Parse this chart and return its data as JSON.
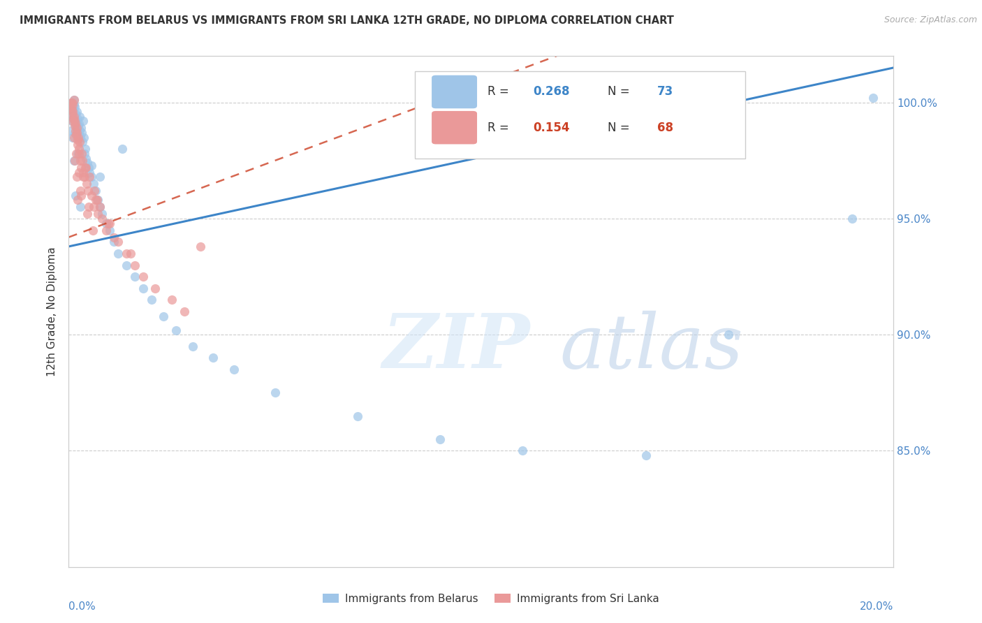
{
  "title": "IMMIGRANTS FROM BELARUS VS IMMIGRANTS FROM SRI LANKA 12TH GRADE, NO DIPLOMA CORRELATION CHART",
  "source": "Source: ZipAtlas.com",
  "ylabel": "12th Grade, No Diploma",
  "x_min": 0.0,
  "x_max": 20.0,
  "y_min": 80.0,
  "y_max": 102.0,
  "y_ticks": [
    85.0,
    90.0,
    95.0,
    100.0
  ],
  "y_tick_labels": [
    "85.0%",
    "90.0%",
    "95.0%",
    "100.0%"
  ],
  "color_belarus": "#9fc5e8",
  "color_srilanka": "#ea9999",
  "color_axis_labels": "#4a86c8",
  "color_regression_belarus": "#3d85c8",
  "color_regression_srilanka": "#cc4125",
  "watermark_zip": "ZIP",
  "watermark_atlas": "atlas",
  "belarus_reg_x0": 0.0,
  "belarus_reg_y0": 93.8,
  "belarus_reg_x1": 20.0,
  "belarus_reg_y1": 101.5,
  "srilanka_reg_x0": 0.0,
  "srilanka_reg_y0": 94.2,
  "srilanka_reg_x1": 5.0,
  "srilanka_reg_y1": 97.5,
  "belarus_x": [
    0.05,
    0.05,
    0.06,
    0.07,
    0.08,
    0.09,
    0.1,
    0.1,
    0.11,
    0.12,
    0.13,
    0.14,
    0.15,
    0.15,
    0.16,
    0.17,
    0.18,
    0.19,
    0.2,
    0.2,
    0.21,
    0.22,
    0.23,
    0.24,
    0.25,
    0.26,
    0.27,
    0.28,
    0.3,
    0.32,
    0.34,
    0.36,
    0.38,
    0.4,
    0.42,
    0.45,
    0.48,
    0.5,
    0.55,
    0.6,
    0.65,
    0.7,
    0.75,
    0.8,
    0.9,
    1.0,
    1.1,
    1.2,
    1.4,
    1.6,
    1.8,
    2.0,
    2.3,
    2.6,
    3.0,
    3.5,
    4.0,
    5.0,
    7.0,
    9.0,
    11.0,
    14.0,
    16.0,
    19.0,
    19.5,
    0.13,
    0.17,
    0.22,
    0.35,
    0.28,
    0.55,
    0.75,
    1.3
  ],
  "belarus_y": [
    99.5,
    98.8,
    99.2,
    99.8,
    100.0,
    99.6,
    99.7,
    98.5,
    99.3,
    99.9,
    100.1,
    99.4,
    99.8,
    98.7,
    99.0,
    99.5,
    99.2,
    98.9,
    99.6,
    99.1,
    98.8,
    99.3,
    99.0,
    98.6,
    99.1,
    98.8,
    99.4,
    98.5,
    98.9,
    98.7,
    98.3,
    98.5,
    97.8,
    98.0,
    97.6,
    97.4,
    97.2,
    97.0,
    96.8,
    96.5,
    96.2,
    95.8,
    95.5,
    95.2,
    94.8,
    94.5,
    94.0,
    93.5,
    93.0,
    92.5,
    92.0,
    91.5,
    90.8,
    90.2,
    89.5,
    89.0,
    88.5,
    87.5,
    86.5,
    85.5,
    85.0,
    84.8,
    90.0,
    95.0,
    100.2,
    97.5,
    96.0,
    97.8,
    99.2,
    95.5,
    97.3,
    96.8,
    98.0
  ],
  "srilanka_x": [
    0.05,
    0.06,
    0.07,
    0.08,
    0.09,
    0.1,
    0.11,
    0.12,
    0.13,
    0.14,
    0.15,
    0.16,
    0.17,
    0.18,
    0.19,
    0.2,
    0.21,
    0.22,
    0.23,
    0.24,
    0.25,
    0.26,
    0.28,
    0.3,
    0.32,
    0.35,
    0.38,
    0.4,
    0.43,
    0.46,
    0.5,
    0.55,
    0.6,
    0.65,
    0.7,
    0.75,
    0.8,
    0.9,
    1.0,
    1.1,
    1.2,
    1.4,
    1.6,
    1.8,
    2.1,
    2.5,
    0.12,
    0.18,
    0.28,
    0.35,
    0.22,
    0.42,
    0.58,
    0.68,
    0.15,
    0.3,
    0.2,
    0.25,
    2.8,
    3.2,
    0.1,
    0.45,
    0.95,
    0.08,
    1.5,
    0.33,
    0.48,
    0.62
  ],
  "srilanka_y": [
    99.8,
    100.0,
    99.7,
    99.5,
    99.9,
    99.6,
    99.3,
    100.1,
    99.4,
    99.0,
    99.2,
    98.8,
    99.1,
    98.6,
    98.9,
    98.7,
    98.4,
    98.2,
    98.5,
    98.0,
    97.8,
    98.3,
    97.5,
    97.2,
    97.8,
    97.0,
    96.8,
    97.2,
    96.5,
    96.2,
    96.8,
    96.0,
    95.5,
    95.8,
    95.2,
    95.5,
    95.0,
    94.5,
    94.8,
    94.2,
    94.0,
    93.5,
    93.0,
    92.5,
    92.0,
    91.5,
    98.5,
    97.8,
    96.2,
    96.8,
    95.8,
    97.2,
    94.5,
    95.8,
    97.5,
    96.0,
    96.8,
    97.0,
    91.0,
    93.8,
    99.2,
    95.2,
    94.8,
    100.0,
    93.5,
    97.5,
    95.5,
    96.2
  ]
}
